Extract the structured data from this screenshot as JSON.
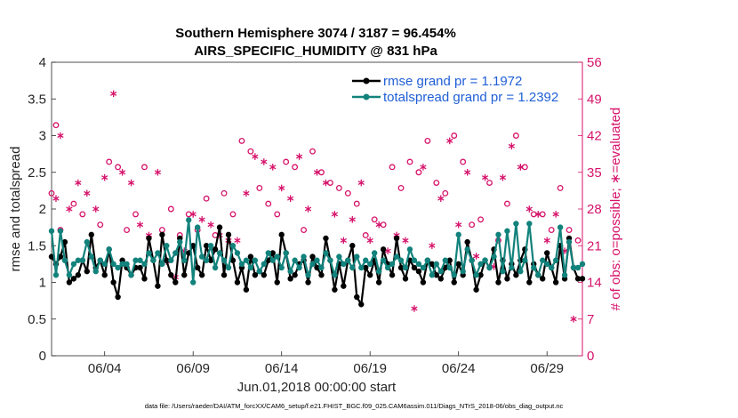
{
  "chart_data": {
    "type": "line",
    "title": "Southern Hemisphere 3074 / 3187 = 96.454%",
    "subtitle": "AIRS_SPECIFIC_HUMIDITY @ 831 hPa",
    "xlabel": "Jun.01,2018 00:00:00 start",
    "ylabel": "rmse and totalspread",
    "ylabel_right": "# of obs: o=possible; ∗=evaluated",
    "xlim": [
      0,
      30
    ],
    "ylim": [
      0,
      4
    ],
    "ylim_right": [
      0,
      56
    ],
    "x_ticks": [
      {
        "x": 3,
        "label": "06/04"
      },
      {
        "x": 8,
        "label": "06/09"
      },
      {
        "x": 13,
        "label": "06/14"
      },
      {
        "x": 18,
        "label": "06/19"
      },
      {
        "x": 23,
        "label": "06/24"
      },
      {
        "x": 28,
        "label": "06/29"
      }
    ],
    "y_ticks": [
      "0",
      "0.5",
      "1",
      "1.5",
      "2",
      "2.5",
      "3",
      "3.5",
      "4"
    ],
    "y_ticks_right": [
      "0",
      "7",
      "14",
      "21",
      "28",
      "35",
      "42",
      "49",
      "56"
    ],
    "legend_position": "top-right",
    "series": [
      {
        "name": "rmse grand pr = 1.1972",
        "color": "#000000",
        "x": [
          0.0,
          0.25,
          0.5,
          0.75,
          1.0,
          1.25,
          1.5,
          1.75,
          2.0,
          2.25,
          2.5,
          2.75,
          3.0,
          3.25,
          3.5,
          3.75,
          4.0,
          4.25,
          4.5,
          4.75,
          5.0,
          5.25,
          5.5,
          5.75,
          6.0,
          6.25,
          6.5,
          6.75,
          7.0,
          7.25,
          7.5,
          7.75,
          8.0,
          8.25,
          8.5,
          8.75,
          9.0,
          9.25,
          9.5,
          9.75,
          10.0,
          10.25,
          10.5,
          10.75,
          11.0,
          11.25,
          11.5,
          11.75,
          12.0,
          12.25,
          12.5,
          12.75,
          13.0,
          13.25,
          13.5,
          13.75,
          14.0,
          14.25,
          14.5,
          14.75,
          15.0,
          15.25,
          15.5,
          15.75,
          16.0,
          16.25,
          16.5,
          16.75,
          17.0,
          17.25,
          17.5,
          17.75,
          18.0,
          18.25,
          18.5,
          18.75,
          19.0,
          19.25,
          19.5,
          19.75,
          20.0,
          20.25,
          20.5,
          20.75,
          21.0,
          21.25,
          21.5,
          21.75,
          22.0,
          22.25,
          22.5,
          22.75,
          23.0,
          23.25,
          23.5,
          23.75,
          24.0,
          24.25,
          24.5,
          24.75,
          25.0,
          25.25,
          25.5,
          25.75,
          26.0,
          26.25,
          26.5,
          26.75,
          27.0,
          27.25,
          27.5,
          27.75,
          28.0,
          28.25,
          28.5,
          28.75,
          29.0,
          29.25,
          29.5,
          29.75,
          30.0
        ],
        "values": [
          1.35,
          1.25,
          1.35,
          1.55,
          1.0,
          1.05,
          1.1,
          1.3,
          1.15,
          1.65,
          1.2,
          1.3,
          1.1,
          1.45,
          1.0,
          0.8,
          1.3,
          1.2,
          1.1,
          1.2,
          1.2,
          1.05,
          1.6,
          1.3,
          0.95,
          1.65,
          1.3,
          1.1,
          1.0,
          1.6,
          1.1,
          1.4,
          1.5,
          1.2,
          1.1,
          1.5,
          1.3,
          1.45,
          1.75,
          1.1,
          1.65,
          1.3,
          1.0,
          1.2,
          0.9,
          1.35,
          1.1,
          1.15,
          1.1,
          1.3,
          1.4,
          1.0,
          1.65,
          1.4,
          1.05,
          1.1,
          1.25,
          1.3,
          1.0,
          1.35,
          1.2,
          1.1,
          1.6,
          1.3,
          0.9,
          1.25,
          0.95,
          1.3,
          1.5,
          0.8,
          0.7,
          1.2,
          1.1,
          1.3,
          1.0,
          1.45,
          1.25,
          1.1,
          1.6,
          1.2,
          1.05,
          1.3,
          1.2,
          1.15,
          1.0,
          1.3,
          1.25,
          1.1,
          1.05,
          1.2,
          1.3,
          1.0,
          1.25,
          1.1,
          1.55,
          1.3,
          0.9,
          1.1,
          1.3,
          1.2,
          1.45,
          1.0,
          1.3,
          1.05,
          1.25,
          1.1,
          1.3,
          1.45,
          1.0,
          1.25,
          1.1,
          1.05,
          1.4,
          1.2,
          1.0,
          1.5,
          1.05,
          1.6,
          1.2,
          1.05,
          1.05
        ]
      },
      {
        "name": "totalspread grand pr = 1.2392",
        "color": "#12827c",
        "x": [
          0.0,
          0.25,
          0.5,
          0.75,
          1.0,
          1.25,
          1.5,
          1.75,
          2.0,
          2.25,
          2.5,
          2.75,
          3.0,
          3.25,
          3.5,
          3.75,
          4.0,
          4.25,
          4.5,
          4.75,
          5.0,
          5.25,
          5.5,
          5.75,
          6.0,
          6.25,
          6.5,
          6.75,
          7.0,
          7.25,
          7.5,
          7.75,
          8.0,
          8.25,
          8.5,
          8.75,
          9.0,
          9.25,
          9.5,
          9.75,
          10.0,
          10.25,
          10.5,
          10.75,
          11.0,
          11.25,
          11.5,
          11.75,
          12.0,
          12.25,
          12.5,
          12.75,
          13.0,
          13.25,
          13.5,
          13.75,
          14.0,
          14.25,
          14.5,
          14.75,
          15.0,
          15.25,
          15.5,
          15.75,
          16.0,
          16.25,
          16.5,
          16.75,
          17.0,
          17.25,
          17.5,
          17.75,
          18.0,
          18.25,
          18.5,
          18.75,
          19.0,
          19.25,
          19.5,
          19.75,
          20.0,
          20.25,
          20.5,
          20.75,
          21.0,
          21.25,
          21.5,
          21.75,
          22.0,
          22.25,
          22.5,
          22.75,
          23.0,
          23.25,
          23.5,
          23.75,
          24.0,
          24.25,
          24.5,
          24.75,
          25.0,
          25.25,
          25.5,
          25.75,
          26.0,
          26.25,
          26.5,
          26.75,
          27.0,
          27.25,
          27.5,
          27.75,
          28.0,
          28.25,
          28.5,
          28.75,
          29.0,
          29.25,
          29.5,
          29.75,
          30.0
        ],
        "values": [
          1.7,
          1.1,
          1.7,
          1.3,
          1.1,
          1.25,
          1.3,
          1.3,
          1.55,
          1.35,
          1.15,
          1.3,
          1.25,
          1.45,
          1.25,
          1.2,
          1.25,
          1.25,
          1.1,
          1.3,
          1.3,
          1.25,
          1.4,
          1.3,
          1.4,
          1.25,
          1.5,
          1.3,
          1.4,
          1.55,
          1.3,
          1.85,
          1.0,
          1.75,
          1.35,
          1.3,
          1.5,
          1.2,
          1.4,
          1.3,
          1.2,
          1.5,
          1.4,
          1.25,
          1.3,
          1.2,
          1.3,
          1.15,
          1.25,
          1.4,
          1.3,
          1.35,
          1.2,
          1.4,
          1.15,
          1.3,
          1.2,
          1.35,
          1.1,
          1.25,
          1.3,
          1.2,
          1.4,
          1.3,
          1.1,
          1.35,
          1.25,
          1.3,
          1.2,
          1.35,
          1.2,
          1.3,
          1.25,
          1.4,
          1.15,
          1.3,
          1.2,
          1.25,
          1.35,
          1.3,
          1.2,
          1.45,
          1.3,
          1.25,
          1.2,
          1.3,
          1.1,
          1.25,
          1.15,
          1.3,
          1.2,
          1.1,
          1.65,
          1.15,
          1.45,
          1.3,
          1.1,
          1.25,
          1.3,
          1.2,
          1.35,
          1.65,
          1.15,
          1.7,
          1.2,
          1.8,
          1.15,
          1.3,
          1.8,
          1.2,
          1.1,
          1.3,
          1.25,
          1.2,
          1.3,
          1.75,
          1.1,
          1.55,
          1.2,
          1.2,
          1.25
        ]
      }
    ],
    "obs_series": [
      {
        "name": "possible",
        "marker": "o",
        "color": "#d6136b",
        "x": [
          0.0,
          0.25,
          0.5,
          1.25,
          1.75,
          2.75,
          3.25,
          3.75,
          4.25,
          4.75,
          5.25,
          6.25,
          6.75,
          7.25,
          7.75,
          8.25,
          8.75,
          9.25,
          9.75,
          10.25,
          10.75,
          11.25,
          11.75,
          12.25,
          12.75,
          13.25,
          13.75,
          14.25,
          14.75,
          15.25,
          15.75,
          16.25,
          16.75,
          17.25,
          17.75,
          18.25,
          18.75,
          19.25,
          19.75,
          20.25,
          20.75,
          21.25,
          21.75,
          22.25,
          22.75,
          23.25,
          23.75,
          24.25,
          24.75,
          25.25,
          25.75,
          26.25,
          26.75,
          27.25,
          27.75,
          28.25,
          28.75,
          29.25,
          29.75
        ],
        "values": [
          31,
          44,
          24,
          29,
          27,
          25,
          37,
          36,
          24,
          27,
          36,
          24,
          28,
          23,
          27,
          24,
          30,
          23,
          31,
          27,
          41,
          39,
          32,
          29,
          27,
          37,
          36,
          24,
          39,
          35,
          33,
          32,
          31,
          29,
          23,
          26,
          25,
          36,
          32,
          37,
          35,
          41,
          33,
          31,
          42,
          37,
          25,
          26,
          33,
          22,
          29,
          42,
          36,
          27,
          27,
          24,
          32,
          24,
          22
        ]
      },
      {
        "name": "evaluated",
        "marker": "*",
        "color": "#d6136b",
        "x": [
          0.25,
          0.5,
          1.0,
          1.5,
          2.0,
          2.5,
          3.0,
          3.5,
          4.0,
          4.5,
          5.0,
          5.5,
          6.0,
          6.5,
          7.0,
          7.5,
          8.0,
          8.5,
          9.0,
          9.5,
          10.0,
          10.5,
          11.0,
          11.5,
          12.0,
          12.5,
          13.0,
          13.5,
          14.0,
          14.5,
          15.0,
          15.5,
          16.0,
          16.5,
          17.0,
          17.5,
          18.0,
          18.5,
          19.0,
          19.5,
          20.0,
          20.5,
          21.0,
          21.5,
          22.0,
          22.5,
          23.0,
          23.5,
          24.0,
          24.5,
          25.0,
          25.5,
          26.0,
          26.5,
          27.0,
          27.5,
          28.0,
          28.5,
          29.0,
          29.5
        ],
        "values": [
          30,
          42,
          28,
          33,
          31,
          28,
          34,
          50,
          35,
          33,
          25,
          23,
          35,
          18,
          15,
          20,
          27,
          26,
          25,
          23,
          22,
          22,
          31,
          38,
          37,
          36,
          32,
          30,
          38,
          28,
          35,
          33,
          27,
          22,
          26,
          33,
          22,
          25,
          20,
          23,
          22,
          9,
          36,
          21,
          30,
          41,
          25,
          35,
          19,
          34,
          17,
          34,
          40,
          36,
          28,
          27,
          22,
          27,
          20,
          7
        ]
      }
    ],
    "footnote": "data file: /Users/raeder/DAI/ATM_forcXX/CAM6_setup/f.e21.FHIST_BGC.f09_025.CAM6assim.011/Diags_NTrS_2018-06/obs_diag_output.nc"
  }
}
